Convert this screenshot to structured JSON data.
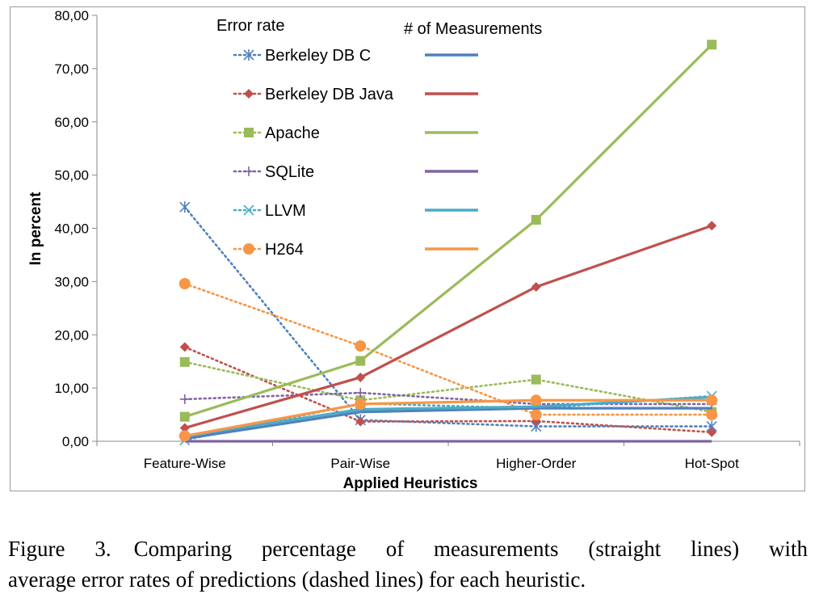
{
  "chart_data": {
    "type": "line",
    "categories": [
      "Feature-Wise",
      "Pair-Wise",
      "Higher-Order",
      "Hot-Spot"
    ],
    "xlabel": "Applied Heuristics",
    "ylabel": "In percent",
    "ylim": [
      0,
      80
    ],
    "yticks": [
      "0,00",
      "10,00",
      "20,00",
      "30,00",
      "40,00",
      "50,00",
      "60,00",
      "70,00",
      "80,00"
    ],
    "legend_headers": [
      "Error rate",
      "# of Measurements"
    ],
    "legend_position": "top-left",
    "grid": false,
    "series": [
      {
        "name": "Berkeley DB C",
        "color": "#4F81BD",
        "marker": "asterisk",
        "error": [
          44.0,
          4.0,
          2.8,
          2.8
        ],
        "measurements": [
          0.5,
          5.5,
          6.2,
          6.2
        ]
      },
      {
        "name": "Berkeley DB Java",
        "color": "#C0504D",
        "marker": "diamond",
        "error": [
          17.7,
          3.7,
          3.8,
          1.7
        ],
        "measurements": [
          2.5,
          12.0,
          29.0,
          40.5
        ]
      },
      {
        "name": "Apache",
        "color": "#9BBB59",
        "marker": "square",
        "error": [
          14.9,
          7.7,
          11.6,
          5.5
        ],
        "measurements": [
          4.6,
          15.1,
          41.6,
          74.5
        ]
      },
      {
        "name": "SQLite",
        "color": "#8064A2",
        "marker": "plus",
        "error": [
          7.9,
          9.1,
          7.0,
          7.0
        ],
        "measurements": [
          0.0,
          0.0,
          0.0,
          0.0
        ]
      },
      {
        "name": "LLVM",
        "color": "#4BACC6",
        "marker": "x",
        "error": [
          0.2,
          7.1,
          6.2,
          8.5
        ],
        "measurements": [
          1.0,
          6.0,
          6.5,
          8.3
        ]
      },
      {
        "name": "H264",
        "color": "#F79646",
        "marker": "circle",
        "error": [
          29.6,
          17.9,
          5.0,
          5.0
        ],
        "measurements": [
          1.0,
          7.0,
          7.7,
          7.7
        ]
      }
    ]
  },
  "caption": {
    "label": "Figure 3.",
    "text_line1": "Comparing percentage of measurements (straight lines) with",
    "text_line2": "average error rates of predictions (dashed lines) for each heuristic."
  }
}
